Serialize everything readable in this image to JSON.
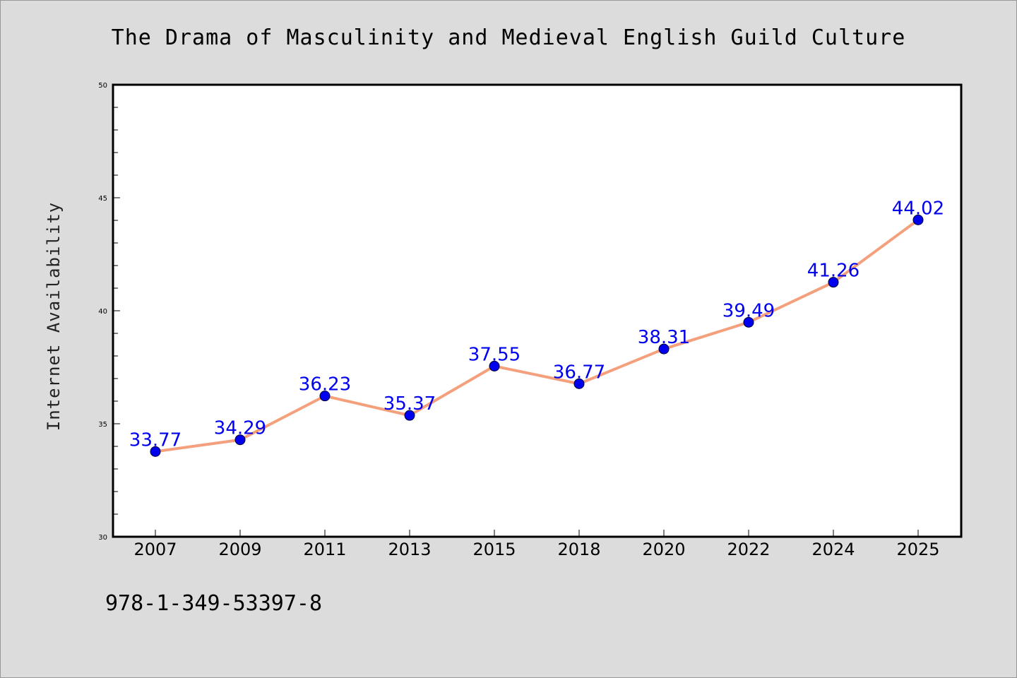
{
  "chart_data": {
    "type": "line",
    "title": "The Drama of Masculinity and Medieval English Guild Culture",
    "xlabel": "",
    "ylabel": "Internet Availability",
    "categories": [
      "2007",
      "2009",
      "2011",
      "2013",
      "2015",
      "2018",
      "2020",
      "2022",
      "2024",
      "2025"
    ],
    "series": [
      {
        "values": [
          33.77,
          34.29,
          36.23,
          35.37,
          37.55,
          36.77,
          38.31,
          39.49,
          41.26,
          44.02
        ],
        "labels": [
          "33.77",
          "34.29",
          "36.23",
          "35.37",
          "37.55",
          "36.77",
          "38.31",
          "39.49",
          "41.26",
          "44.02"
        ]
      }
    ],
    "ylim": [
      30,
      50
    ],
    "yticks": [
      "30",
      "35",
      "40",
      "45",
      "50"
    ],
    "grid": false,
    "colors": {
      "line": "#f4a07c",
      "marker": "#0000ee",
      "label": "#0000ee",
      "plot_background": "#ffffff",
      "page_background": "#dcdcdc"
    }
  },
  "footer": {
    "isbn": "978-1-349-53397-8"
  }
}
